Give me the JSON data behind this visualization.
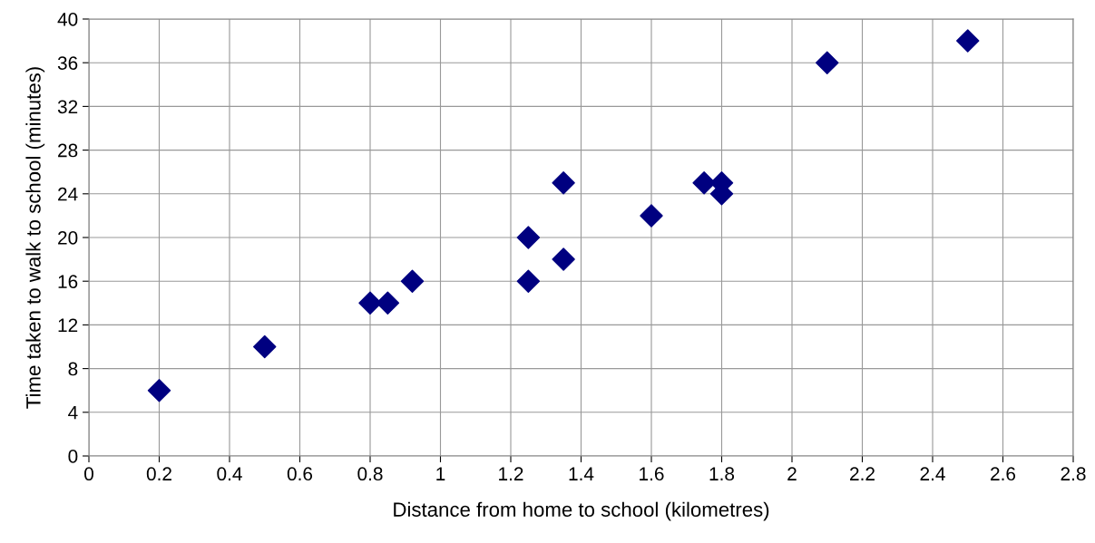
{
  "chart_data": {
    "type": "scatter",
    "xlabel": "Distance from home to school (kilometres)",
    "ylabel": "Time taken to walk to school (minutes)",
    "x": [
      0.2,
      0.5,
      0.8,
      0.85,
      0.92,
      1.25,
      1.25,
      1.35,
      1.35,
      1.6,
      1.75,
      1.8,
      1.8,
      2.1,
      2.5
    ],
    "values": [
      6,
      10,
      14,
      14,
      16,
      20,
      16,
      25,
      18,
      22,
      25,
      25,
      24,
      36,
      38
    ],
    "color": "#000080",
    "marker": "diamond",
    "grid": true,
    "legend": false,
    "xlim": [
      0,
      2.8
    ],
    "xticks": [
      0,
      0.2,
      0.4,
      0.6,
      0.8,
      1,
      1.2,
      1.4,
      1.6,
      1.8,
      2,
      2.2,
      2.4,
      2.6,
      2.8
    ],
    "ylim": [
      0,
      40
    ],
    "yticks": [
      0,
      4,
      8,
      12,
      16,
      20,
      24,
      28,
      32,
      36,
      40
    ]
  }
}
